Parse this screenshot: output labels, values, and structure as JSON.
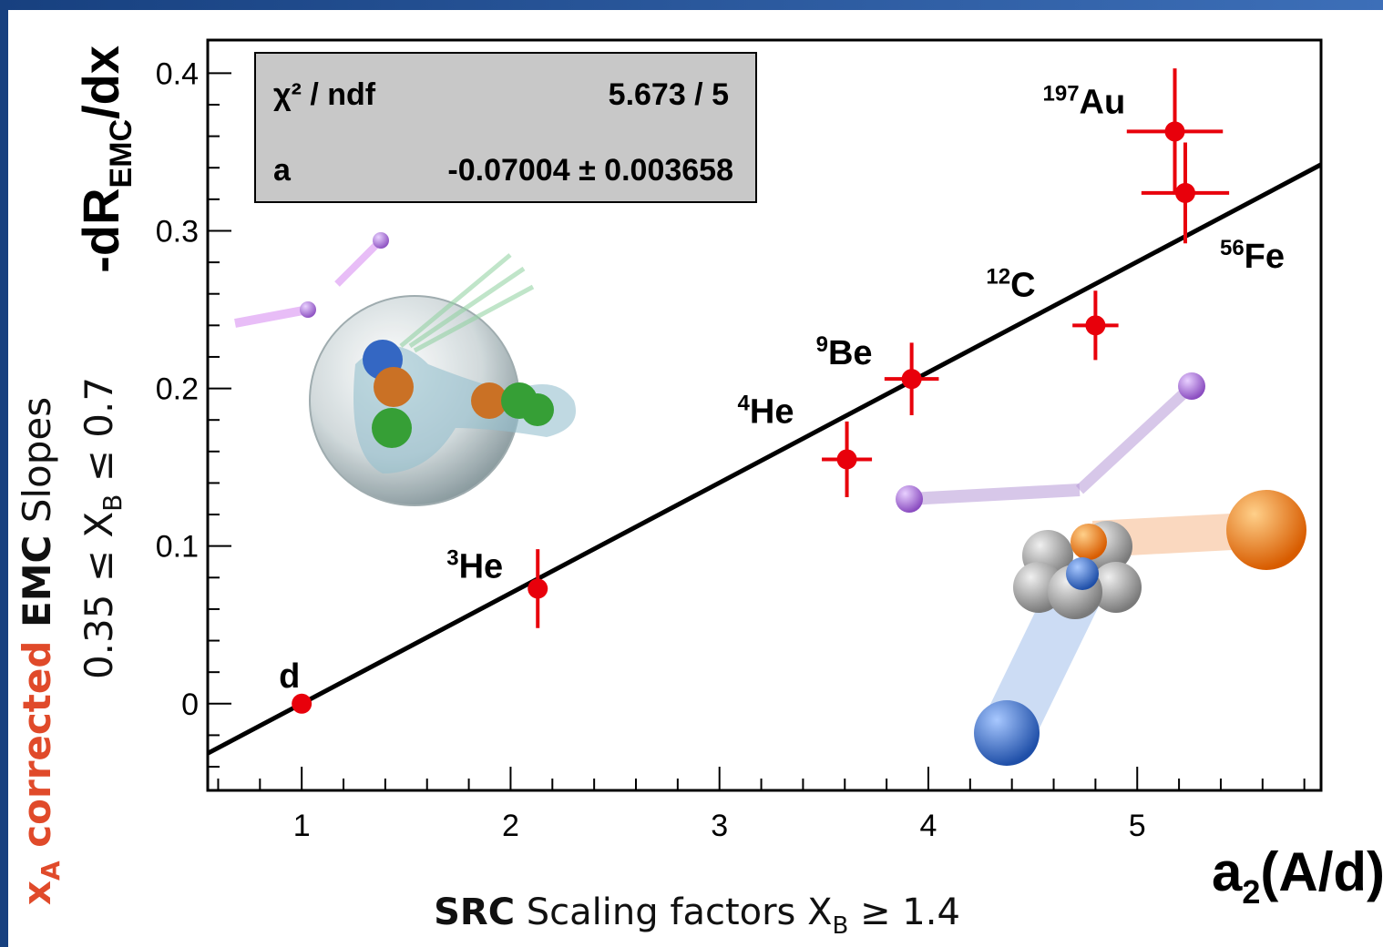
{
  "chart_data": {
    "type": "scatter",
    "x": [
      1,
      2.13,
      3.61,
      3.92,
      4.8,
      5.23,
      5.18
    ],
    "values": [
      0,
      0.073,
      0.155,
      0.206,
      0.24,
      0.324,
      0.363
    ],
    "xerr": [
      null,
      null,
      0.12,
      0.13,
      0.11,
      0.21,
      0.23
    ],
    "yerr": [
      null,
      0.025,
      0.024,
      0.023,
      0.022,
      0.032,
      0.04
    ],
    "point_labels": [
      {
        "sym": "d"
      },
      {
        "sup": "3",
        "sym": "He"
      },
      {
        "sup": "4",
        "sym": "He"
      },
      {
        "sup": "9",
        "sym": "Be"
      },
      {
        "sup": "12",
        "sym": "C"
      },
      {
        "sup": "56",
        "sym": "Fe"
      },
      {
        "sup": "197",
        "sym": "Au"
      }
    ],
    "color": "#e8000b",
    "fit": {
      "x": [
        0.55,
        5.88
      ],
      "values": [
        -0.0315,
        0.342
      ],
      "color": "#000000"
    },
    "stats": {
      "row1_label": "χ² / ndf",
      "row1_value": "5.673 / 5",
      "row2_label": "a",
      "row2_value": "-0.07004 ± 0.003658"
    },
    "x_label": {
      "main": "a",
      "sub": "2",
      "tail": "(A/d)"
    },
    "y_label": {
      "main": "-dR",
      "sub": "EMC",
      "tail": "/dx"
    },
    "xlim": [
      0.55,
      5.88
    ],
    "ylim": [
      -0.055,
      0.421
    ],
    "xticks": [
      1,
      2,
      3,
      4,
      5
    ],
    "yticks": [
      0,
      0.1,
      0.2,
      0.3,
      0.4
    ],
    "xminorticks": [
      0.6,
      0.8,
      1.2,
      1.4,
      1.6,
      1.8,
      2.2,
      2.4,
      2.6,
      2.8,
      3.2,
      3.4,
      3.6,
      3.8,
      4.2,
      4.4,
      4.6,
      4.8,
      5.2,
      5.4,
      5.6,
      5.8
    ],
    "yminorticks": [
      -0.04,
      -0.02,
      0.02,
      0.04,
      0.06,
      0.08,
      0.12,
      0.14,
      0.16,
      0.18,
      0.22,
      0.24,
      0.26,
      0.28,
      0.32,
      0.34,
      0.36,
      0.38
    ],
    "x_caption": {
      "bold": "SRC",
      "text": " Scaling factors X",
      "sub": "B",
      "tail": " ≥ 1.4"
    },
    "y_caption": {
      "pre": "0.35 ≤ X",
      "sub": "B",
      "tail": " ≤ 0.7"
    },
    "side_caption": {
      "x": "x",
      "x_sub": "A",
      "red": " corrected ",
      "bold": "EMC",
      "text": " Slopes"
    }
  }
}
